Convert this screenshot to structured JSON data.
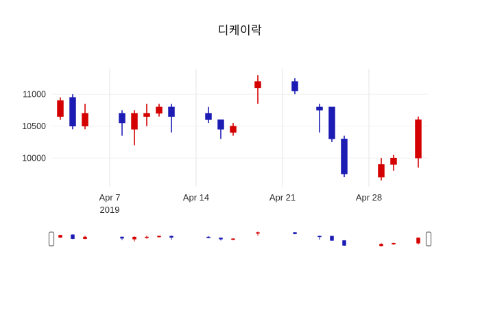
{
  "title": "디케이락",
  "chart_data": {
    "type": "candlestick",
    "title": "디케이락",
    "legend": false,
    "grid": true,
    "x_axis": {
      "ticks": [
        {
          "label": "Apr 7",
          "sublabel": "2019",
          "date": "2019-04-07"
        },
        {
          "label": "Apr 14",
          "sublabel": "",
          "date": "2019-04-14"
        },
        {
          "label": "Apr 21",
          "sublabel": "",
          "date": "2019-04-21"
        },
        {
          "label": "Apr 28",
          "sublabel": "",
          "date": "2019-04-28"
        }
      ]
    },
    "y_axis": {
      "ticks": [
        10000,
        10500,
        11000
      ],
      "range": [
        9550,
        11400
      ]
    },
    "colors": {
      "increasing": "#d40000",
      "decreasing": "#1c1cb4",
      "gridline": "#e5e5e5",
      "background": "#ffffff"
    },
    "rangeslider": {
      "visible": true
    },
    "candles": [
      {
        "date": "2019-04-03",
        "open": 10650,
        "high": 10950,
        "low": 10600,
        "close": 10900
      },
      {
        "date": "2019-04-04",
        "open": 10950,
        "high": 11000,
        "low": 10450,
        "close": 10500
      },
      {
        "date": "2019-04-05",
        "open": 10500,
        "high": 10850,
        "low": 10450,
        "close": 10700
      },
      {
        "date": "2019-04-08",
        "open": 10700,
        "high": 10750,
        "low": 10350,
        "close": 10550
      },
      {
        "date": "2019-04-09",
        "open": 10450,
        "high": 10750,
        "low": 10200,
        "close": 10700
      },
      {
        "date": "2019-04-10",
        "open": 10650,
        "high": 10850,
        "low": 10500,
        "close": 10700
      },
      {
        "date": "2019-04-11",
        "open": 10700,
        "high": 10850,
        "low": 10650,
        "close": 10800
      },
      {
        "date": "2019-04-12",
        "open": 10800,
        "high": 10850,
        "low": 10400,
        "close": 10650
      },
      {
        "date": "2019-04-15",
        "open": 10700,
        "high": 10800,
        "low": 10550,
        "close": 10600
      },
      {
        "date": "2019-04-16",
        "open": 10600,
        "high": 10600,
        "low": 10300,
        "close": 10450
      },
      {
        "date": "2019-04-17",
        "open": 10400,
        "high": 10550,
        "low": 10350,
        "close": 10500
      },
      {
        "date": "2019-04-19",
        "open": 11100,
        "high": 11300,
        "low": 10850,
        "close": 11200
      },
      {
        "date": "2019-04-22",
        "open": 11200,
        "high": 11250,
        "low": 11000,
        "close": 11050
      },
      {
        "date": "2019-04-24",
        "open": 10800,
        "high": 10850,
        "low": 10400,
        "close": 10750
      },
      {
        "date": "2019-04-25",
        "open": 10800,
        "high": 10800,
        "low": 10250,
        "close": 10300
      },
      {
        "date": "2019-04-26",
        "open": 10300,
        "high": 10350,
        "low": 9700,
        "close": 9750
      },
      {
        "date": "2019-04-29",
        "open": 9700,
        "high": 10000,
        "low": 9650,
        "close": 9900
      },
      {
        "date": "2019-04-30",
        "open": 9900,
        "high": 10050,
        "low": 9800,
        "close": 10000
      },
      {
        "date": "2019-05-02",
        "open": 10000,
        "high": 10650,
        "low": 9850,
        "close": 10600
      }
    ]
  }
}
